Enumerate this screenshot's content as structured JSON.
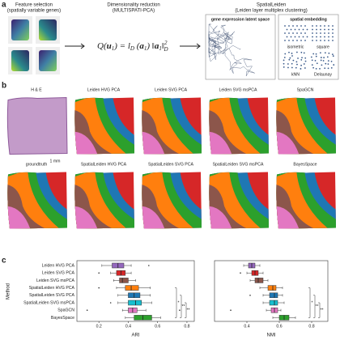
{
  "panel_a": {
    "label": "a",
    "feature_selection": {
      "title": "Feature selection",
      "subtitle": "(spatially variable genes)"
    },
    "dim_reduction": {
      "title": "Dimensionality reduction",
      "subtitle": "(MULTISPATI-PCA)"
    },
    "formula": [
      "Q(",
      "u",
      "1",
      ") = ",
      "l",
      "D",
      " (",
      "a",
      "1",
      ") ‖",
      "a",
      "1",
      "‖",
      "2",
      "D"
    ],
    "spatialleiden": {
      "title": "SpatialLeiden",
      "subtitle": "(Leiden layer multiplex clustering)"
    },
    "latent_space": "gene expression latent space",
    "spatial_embedding": {
      "title": "spatial embedding",
      "types": [
        "isometric",
        "square",
        "kNN",
        "Delaunay"
      ]
    }
  },
  "panel_b": {
    "label": "b",
    "maps": [
      "H & E",
      "Leiden  HVG PCA",
      "Leiden  SVG PCA",
      "Leiden  SVG msPCA",
      "SpaGCN",
      "groundtruth",
      "SpatialLeiden  HVG PCA",
      "SpatialLeiden  SVG PCA",
      "SpatialLeiden  SVG msPCA",
      "BayesSpace"
    ],
    "scale_bar": "1 mm"
  },
  "panel_c": {
    "label": "c"
  },
  "chart_data": [
    {
      "type": "box",
      "xlabel": "ARI",
      "ylabel": "Method",
      "categories": [
        "Leiden  HVG PCA",
        "Leiden  SVG PCA",
        "Leiden  SVG msPCA",
        "SpatialLeiden  HVG PCA",
        "SpatialLeiden  SVG PCA",
        "SpatialLeiden  SVG msPCA",
        "SpaGCN",
        "BayesSpace"
      ],
      "xlim": [
        0.05,
        0.85
      ],
      "xticks": [
        0.2,
        0.4,
        0.6,
        0.8
      ],
      "boxes": [
        {
          "color": "#9467bd",
          "min": 0.22,
          "q1": 0.29,
          "median": 0.33,
          "q3": 0.37,
          "max": 0.42,
          "outliers": [
            0.54
          ]
        },
        {
          "color": "#d62728",
          "min": 0.28,
          "q1": 0.32,
          "median": 0.35,
          "q3": 0.38,
          "max": 0.42,
          "outliers": [
            0.2
          ]
        },
        {
          "color": "#8c564b",
          "min": 0.3,
          "q1": 0.34,
          "median": 0.36,
          "q3": 0.4,
          "max": 0.45,
          "outliers": []
        },
        {
          "color": "#ff7f0e",
          "min": 0.32,
          "q1": 0.38,
          "median": 0.42,
          "q3": 0.47,
          "max": 0.55,
          "outliers": [
            0.2
          ]
        },
        {
          "color": "#1f77b4",
          "min": 0.33,
          "q1": 0.4,
          "median": 0.44,
          "q3": 0.48,
          "max": 0.55,
          "outliers": []
        },
        {
          "color": "#17becf",
          "min": 0.33,
          "q1": 0.4,
          "median": 0.45,
          "q3": 0.49,
          "max": 0.56,
          "outliers": [
            0.28
          ]
        },
        {
          "color": "#e377c2",
          "min": 0.36,
          "q1": 0.4,
          "median": 0.43,
          "q3": 0.46,
          "max": 0.52,
          "outliers": [
            0.12,
            0.75
          ]
        },
        {
          "color": "#2ca02c",
          "min": 0.38,
          "q1": 0.44,
          "median": 0.5,
          "q3": 0.56,
          "max": 0.62,
          "outliers": []
        }
      ],
      "significance": [
        "*",
        "**",
        "**"
      ]
    },
    {
      "type": "box",
      "xlabel": "NMI",
      "xlim": [
        0.2,
        0.9
      ],
      "xticks": [
        0.4,
        0.6,
        0.8
      ],
      "boxes": [
        {
          "color": "#9467bd",
          "min": 0.38,
          "q1": 0.41,
          "median": 0.43,
          "q3": 0.45,
          "max": 0.48,
          "outliers": []
        },
        {
          "color": "#d62728",
          "min": 0.4,
          "q1": 0.43,
          "median": 0.45,
          "q3": 0.47,
          "max": 0.5,
          "outliers": [
            0.36
          ]
        },
        {
          "color": "#8c564b",
          "min": 0.42,
          "q1": 0.45,
          "median": 0.47,
          "q3": 0.5,
          "max": 0.53,
          "outliers": []
        },
        {
          "color": "#ff7f0e",
          "min": 0.48,
          "q1": 0.53,
          "median": 0.56,
          "q3": 0.58,
          "max": 0.62,
          "outliers": []
        },
        {
          "color": "#1f77b4",
          "min": 0.5,
          "q1": 0.54,
          "median": 0.57,
          "q3": 0.59,
          "max": 0.62,
          "outliers": [
            0.42
          ]
        },
        {
          "color": "#17becf",
          "min": 0.5,
          "q1": 0.54,
          "median": 0.57,
          "q3": 0.59,
          "max": 0.63,
          "outliers": []
        },
        {
          "color": "#e377c2",
          "min": 0.52,
          "q1": 0.55,
          "median": 0.57,
          "q3": 0.59,
          "max": 0.61,
          "outliers": [
            0.3
          ]
        },
        {
          "color": "#2ca02c",
          "min": 0.56,
          "q1": 0.6,
          "median": 0.63,
          "q3": 0.66,
          "max": 0.7,
          "outliers": []
        }
      ],
      "significance": [
        "*",
        "**",
        "**"
      ]
    }
  ]
}
